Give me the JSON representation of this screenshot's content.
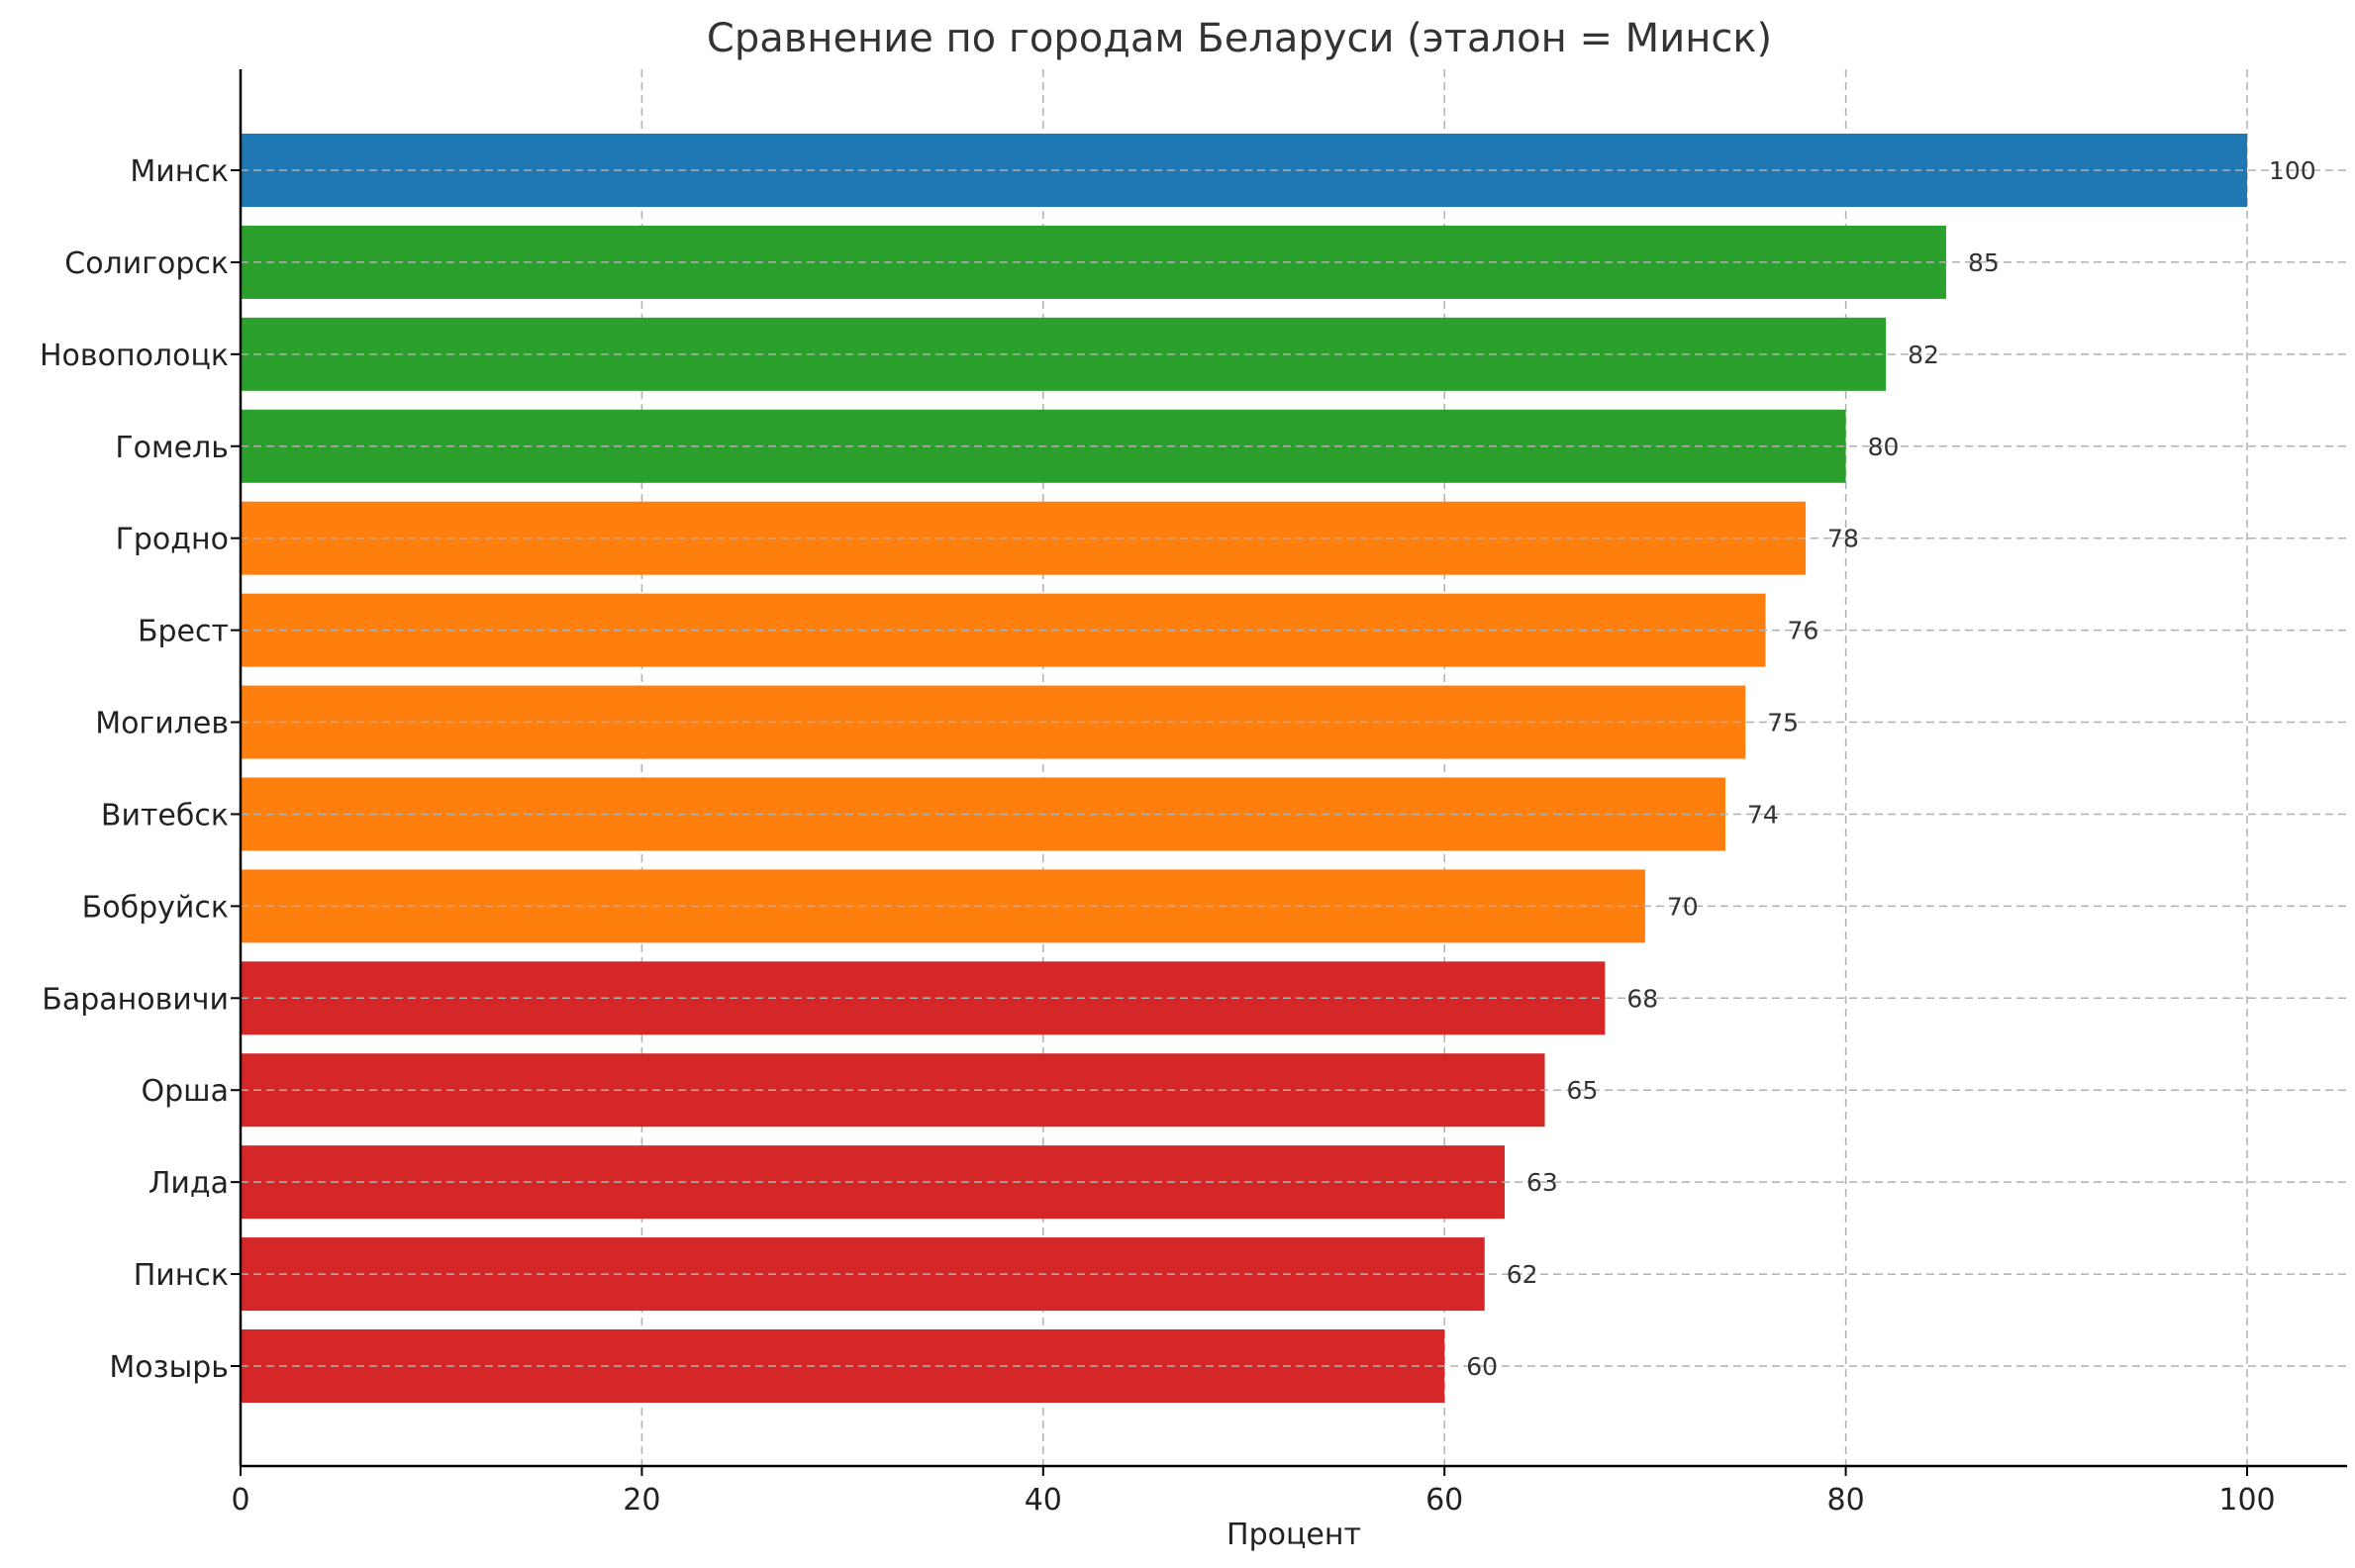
{
  "chart_data": {
    "type": "bar",
    "orientation": "horizontal",
    "title": "Сравнение по городам Беларуси (эталон = Минск)",
    "xlabel": "Процент",
    "ylabel": "",
    "xlim": [
      0,
      105
    ],
    "xticks": [
      0,
      20,
      40,
      60,
      80,
      100
    ],
    "grid": true,
    "categories": [
      "Минск",
      "Солигорск",
      "Новополоцк",
      "Гомель",
      "Гродно",
      "Брест",
      "Могилев",
      "Витебск",
      "Бобруйск",
      "Барановичи",
      "Орша",
      "Лида",
      "Пинск",
      "Мозырь"
    ],
    "values": [
      100,
      85,
      82,
      80,
      78,
      76,
      75,
      74,
      70,
      68,
      65,
      63,
      62,
      60
    ],
    "bar_colors": [
      "#1f77b4",
      "#2ca02c",
      "#2ca02c",
      "#2ca02c",
      "#ff7f0e",
      "#ff7f0e",
      "#ff7f0e",
      "#ff7f0e",
      "#ff7f0e",
      "#d62728",
      "#d62728",
      "#d62728",
      "#d62728",
      "#d62728"
    ],
    "data_labels": [
      "100",
      "85",
      "82",
      "80",
      "78",
      "76",
      "75",
      "74",
      "70",
      "68",
      "65",
      "63",
      "62",
      "60"
    ]
  }
}
